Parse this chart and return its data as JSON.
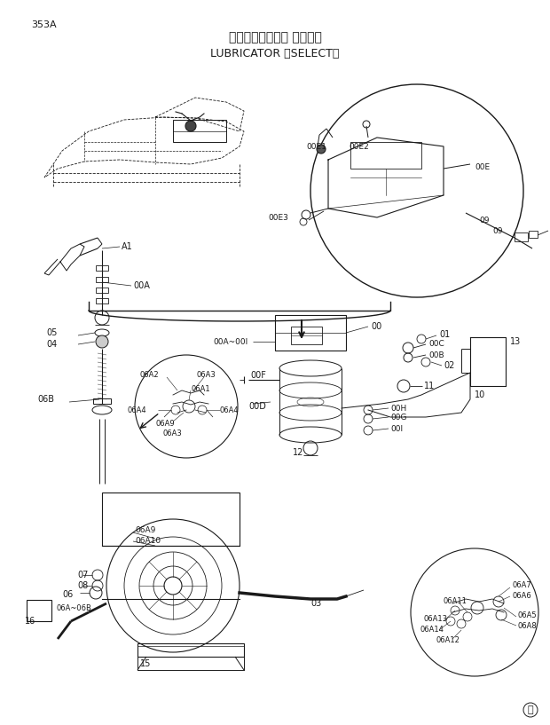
{
  "page_number": "353A",
  "title_jp": "リューブリケータ 〈選択〉",
  "title_en": "LUBRICATOR 〈SELECT〉",
  "bg_color": "#ffffff",
  "lc": "#1a1a1a",
  "tc": "#1a1a1a"
}
